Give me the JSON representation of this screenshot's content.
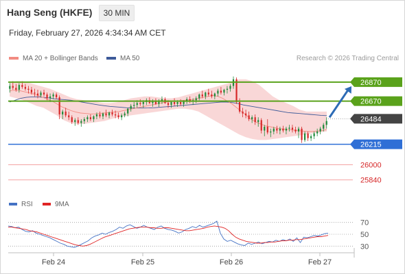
{
  "header": {
    "title": "Hang Seng (HKFE)",
    "timeframe": "30 MIN",
    "datetime": "Friday, February 27, 2026 4:34:34 AM CET",
    "attribution": "Research © 2026 Trading Central"
  },
  "legend": {
    "ma20_label": "MA 20 + Bollinger Bands",
    "ma50_label": "MA 50",
    "rsi_label": "RSI",
    "ma9_label": "9MA"
  },
  "colors": {
    "ma20": "#f28b82",
    "ma50": "#3d5a99",
    "bollinger_fill": "#f7c9c9",
    "candle_up": "#1f8a3a",
    "candle_down": "#d62728",
    "resistance": "#5aa21b",
    "support": "#2f6fd6",
    "support_light": "#f4a3a3",
    "current": "#444444",
    "arrow": "#2d6bb5",
    "rsi": "#4472c4",
    "rsi_ma": "#e02424"
  },
  "chart_data": [
    {
      "type": "candlestick",
      "x_labels": [
        "Feb 24",
        "Feb 25",
        "Feb 26",
        "Feb 27"
      ],
      "ylim": [
        25700,
        27050
      ],
      "candles": [
        [
          26800,
          26860,
          26760,
          26830
        ],
        [
          26830,
          26880,
          26790,
          26810
        ],
        [
          26810,
          26850,
          26770,
          26790
        ],
        [
          26790,
          26860,
          26760,
          26840
        ],
        [
          26840,
          26880,
          26800,
          26820
        ],
        [
          26820,
          26850,
          26780,
          26800
        ],
        [
          26800,
          26830,
          26750,
          26790
        ],
        [
          26790,
          26820,
          26740,
          26760
        ],
        [
          26760,
          26800,
          26720,
          26750
        ],
        [
          26750,
          26790,
          26700,
          26730
        ],
        [
          26730,
          26780,
          26710,
          26760
        ],
        [
          26760,
          26790,
          26720,
          26740
        ],
        [
          26740,
          26760,
          26680,
          26700
        ],
        [
          26700,
          26750,
          26660,
          26720
        ],
        [
          26720,
          26760,
          26690,
          26740
        ],
        [
          26740,
          26760,
          26690,
          26710
        ],
        [
          26710,
          26730,
          26480,
          26530
        ],
        [
          26530,
          26580,
          26480,
          26560
        ],
        [
          26560,
          26600,
          26500,
          26520
        ],
        [
          26520,
          26560,
          26470,
          26500
        ],
        [
          26500,
          26520,
          26430,
          26450
        ],
        [
          26450,
          26490,
          26410,
          26470
        ],
        [
          26470,
          26500,
          26420,
          26440
        ],
        [
          26440,
          26480,
          26400,
          26460
        ],
        [
          26460,
          26500,
          26430,
          26480
        ],
        [
          26480,
          26520,
          26450,
          26500
        ],
        [
          26500,
          26530,
          26460,
          26480
        ],
        [
          26480,
          26520,
          26450,
          26510
        ],
        [
          26510,
          26550,
          26480,
          26530
        ],
        [
          26530,
          26560,
          26490,
          26510
        ],
        [
          26510,
          26550,
          26480,
          26540
        ],
        [
          26540,
          26580,
          26500,
          26520
        ],
        [
          26520,
          26560,
          26490,
          26550
        ],
        [
          26550,
          26580,
          26510,
          26530
        ],
        [
          26530,
          26570,
          26490,
          26520
        ],
        [
          26520,
          26550,
          26480,
          26500
        ],
        [
          26500,
          26540,
          26470,
          26520
        ],
        [
          26520,
          26560,
          26500,
          26540
        ],
        [
          26540,
          26600,
          26510,
          26590
        ],
        [
          26590,
          26640,
          26560,
          26620
        ],
        [
          26620,
          26660,
          26590,
          26630
        ],
        [
          26630,
          26680,
          26600,
          26650
        ],
        [
          26650,
          26690,
          26620,
          26640
        ],
        [
          26640,
          26680,
          26600,
          26660
        ],
        [
          26660,
          26700,
          26630,
          26680
        ],
        [
          26680,
          26710,
          26640,
          26650
        ],
        [
          26650,
          26690,
          26610,
          26670
        ],
        [
          26670,
          26700,
          26630,
          26640
        ],
        [
          26640,
          26690,
          26610,
          26670
        ],
        [
          26670,
          26720,
          26640,
          26690
        ],
        [
          26690,
          26710,
          26640,
          26650
        ],
        [
          26650,
          26680,
          26600,
          26630
        ],
        [
          26630,
          26670,
          26600,
          26660
        ],
        [
          26660,
          26700,
          26620,
          26640
        ],
        [
          26640,
          26680,
          26610,
          26660
        ],
        [
          26660,
          26690,
          26620,
          26640
        ],
        [
          26640,
          26680,
          26610,
          26670
        ],
        [
          26670,
          26710,
          26640,
          26690
        ],
        [
          26690,
          26720,
          26650,
          26670
        ],
        [
          26670,
          26700,
          26630,
          26680
        ],
        [
          26680,
          26720,
          26650,
          26700
        ],
        [
          26700,
          26750,
          26680,
          26740
        ],
        [
          26740,
          26780,
          26700,
          26720
        ],
        [
          26720,
          26770,
          26690,
          26760
        ],
        [
          26760,
          26800,
          26720,
          26740
        ],
        [
          26740,
          26780,
          26700,
          26720
        ],
        [
          26720,
          26760,
          26690,
          26750
        ],
        [
          26750,
          26800,
          26720,
          26780
        ],
        [
          26780,
          26820,
          26740,
          26760
        ],
        [
          26760,
          26800,
          26730,
          26790
        ],
        [
          26790,
          26830,
          26750,
          26800
        ],
        [
          26800,
          26850,
          26770,
          26830
        ],
        [
          26830,
          26930,
          26800,
          26900
        ],
        [
          26900,
          26920,
          26640,
          26660
        ],
        [
          26660,
          26700,
          26540,
          26560
        ],
        [
          26560,
          26600,
          26500,
          26540
        ],
        [
          26540,
          26580,
          26490,
          26520
        ],
        [
          26520,
          26560,
          26460,
          26480
        ],
        [
          26480,
          26520,
          26440,
          26500
        ],
        [
          26500,
          26530,
          26420,
          26450
        ],
        [
          26450,
          26500,
          26400,
          26470
        ],
        [
          26470,
          26490,
          26330,
          26360
        ],
        [
          26360,
          26420,
          26300,
          26400
        ],
        [
          26400,
          26480,
          26320,
          26340
        ],
        [
          26340,
          26380,
          26290,
          26350
        ],
        [
          26350,
          26400,
          26320,
          26380
        ],
        [
          26380,
          26410,
          26330,
          26360
        ],
        [
          26360,
          26400,
          26320,
          26380
        ],
        [
          26380,
          26410,
          26340,
          26360
        ],
        [
          26360,
          26400,
          26320,
          26380
        ],
        [
          26380,
          26420,
          26350,
          26390
        ],
        [
          26390,
          26420,
          26340,
          26370
        ],
        [
          26370,
          26400,
          26330,
          26350
        ],
        [
          26350,
          26400,
          26280,
          26380
        ],
        [
          26380,
          26400,
          26230,
          26260
        ],
        [
          26260,
          26350,
          26240,
          26330
        ],
        [
          26330,
          26350,
          26250,
          26280
        ],
        [
          26280,
          26320,
          26250,
          26300
        ],
        [
          26300,
          26350,
          26270,
          26330
        ],
        [
          26330,
          26380,
          26300,
          26350
        ],
        [
          26350,
          26400,
          26320,
          26380
        ],
        [
          26380,
          26440,
          26350,
          26420
        ],
        [
          26420,
          26500,
          26380,
          26460
        ]
      ],
      "ma20": [
        26780,
        26785,
        26782,
        26770,
        26760,
        26745,
        26730,
        26710,
        26690,
        26670,
        26640,
        26610,
        26590,
        26570,
        26555,
        26545,
        26540,
        26535,
        26535,
        26540,
        26545,
        26550,
        26555,
        26560,
        26570,
        26580,
        26590,
        26600,
        26610,
        26620,
        26630,
        26640,
        26650,
        26660,
        26665,
        26670,
        26675,
        26680,
        26685,
        26690,
        26700,
        26710,
        26720,
        26730,
        26720,
        26700,
        26670,
        26640,
        26600,
        26560,
        26520,
        26480,
        26450,
        26430,
        26410,
        26400,
        26390,
        26380,
        26375,
        26370,
        26365,
        26360,
        26355,
        26350,
        26350,
        26355,
        26360,
        26370
      ],
      "ma50": [
        26660,
        26680,
        26700,
        26710,
        26715,
        26715,
        26710,
        26705,
        26695,
        26690,
        26685,
        26680,
        26670,
        26660,
        26650,
        26640,
        26630,
        26622,
        26615,
        26610,
        26605,
        26600,
        26598,
        26597,
        26597,
        26598,
        26600,
        26605,
        26610,
        26615,
        26620,
        26625,
        26630,
        26635,
        26640,
        26645,
        26650,
        26655,
        26660,
        26660,
        26655,
        26645,
        26630,
        26620,
        26610,
        26600,
        26590,
        26580,
        26570,
        26560,
        26550,
        26545,
        26540,
        26535,
        26530,
        26525,
        26520,
        26517
      ],
      "boll_upper": [
        26860,
        26880,
        26880,
        26860,
        26840,
        26820,
        26800,
        26770,
        26740,
        26710,
        26690,
        26680,
        26670,
        26660,
        26650,
        26650,
        26660,
        26680,
        26700,
        26710,
        26720,
        26720,
        26710,
        26700,
        26700,
        26710,
        26730,
        26750,
        26770,
        26790,
        26810,
        26830,
        26850,
        26870,
        26900,
        26900,
        26880,
        26840,
        26780,
        26720,
        26680,
        26650,
        26620,
        26580,
        26560,
        26560,
        26560,
        26560
      ],
      "boll_lower": [
        26720,
        26700,
        26680,
        26650,
        26620,
        26600,
        26560,
        26520,
        26470,
        26440,
        26430,
        26430,
        26440,
        26450,
        26460,
        26480,
        26500,
        26510,
        26520,
        26530,
        26540,
        26550,
        26560,
        26570,
        26580,
        26590,
        26590,
        26580,
        26560,
        26520,
        26480,
        26440,
        26400,
        26360,
        26320,
        26290,
        26270,
        26260,
        26260,
        26270,
        26280,
        26290,
        26300,
        26310,
        26320,
        26330,
        26340,
        26350
      ]
    },
    {
      "type": "line",
      "name": "RSI",
      "ylim": [
        20,
        80
      ],
      "reference_levels": [
        70,
        50,
        30
      ],
      "values": [
        64,
        63,
        61,
        62,
        58,
        55,
        54,
        56,
        52,
        50,
        48,
        46,
        44,
        41,
        38,
        35,
        33,
        30,
        29,
        28,
        30,
        33,
        36,
        39,
        44,
        47,
        49,
        52,
        50,
        53,
        55,
        58,
        62,
        60,
        64,
        66,
        63,
        60,
        62,
        65,
        62,
        60,
        58,
        62,
        64,
        60,
        58,
        57,
        55,
        52,
        54,
        58,
        60,
        63,
        61,
        65,
        62,
        64,
        66,
        68,
        72,
        52,
        42,
        38,
        40,
        37,
        34,
        32,
        31,
        35,
        33,
        35,
        37,
        34,
        36,
        38,
        37,
        40,
        38,
        41,
        39,
        42,
        38,
        44,
        36,
        45,
        44,
        46,
        48,
        47,
        49,
        51,
        52
      ],
      "ma9": [
        62,
        62,
        61,
        60,
        59,
        58,
        56,
        55,
        54,
        52,
        50,
        48,
        46,
        44,
        42,
        40,
        38,
        36,
        34,
        32,
        31,
        30,
        31,
        33,
        36,
        39,
        42,
        45,
        47,
        49,
        51,
        53,
        55,
        57,
        59,
        60,
        61,
        62,
        62,
        62,
        61,
        61,
        60,
        60,
        61,
        61,
        60,
        59,
        58,
        57,
        56,
        56,
        57,
        58,
        59,
        60,
        62,
        63,
        64,
        63,
        62,
        60,
        56,
        50,
        45,
        42,
        40,
        38,
        37,
        36,
        35,
        35,
        36,
        36,
        37,
        37,
        38,
        39,
        39,
        40,
        40,
        41,
        41,
        42,
        43,
        44,
        45,
        46,
        46,
        47,
        48
      ]
    }
  ],
  "levels": {
    "resistance_2": "26870",
    "resistance_1": "26670",
    "current": "26484",
    "support_1": "26215",
    "support_2": "26000",
    "support_3": "25840"
  },
  "rsi_axis": {
    "t70": "70",
    "t50": "50",
    "t30": "30"
  }
}
